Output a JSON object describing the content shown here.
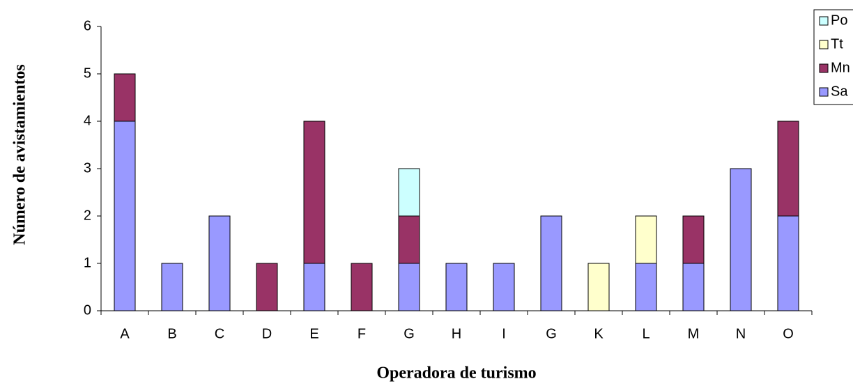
{
  "chart_data": {
    "type": "stacked_bar",
    "y_label": "Número de avistamientos",
    "x_label": "Operadora de turismo",
    "categories": [
      "A",
      "B",
      "C",
      "D",
      "E",
      "F",
      "G",
      "H",
      "I",
      "G",
      "K",
      "L",
      "M",
      "N",
      "O"
    ],
    "series": [
      {
        "name": "Sa",
        "color": "#9999ff",
        "values": [
          4,
          1,
          2,
          0,
          1,
          0,
          1,
          1,
          1,
          2,
          0,
          1,
          1,
          3,
          2
        ]
      },
      {
        "name": "Mn",
        "color": "#993366",
        "values": [
          1,
          0,
          0,
          1,
          3,
          1,
          1,
          0,
          0,
          0,
          0,
          0,
          1,
          0,
          2
        ]
      },
      {
        "name": "Tt",
        "color": "#ffffcc",
        "values": [
          0,
          0,
          0,
          0,
          0,
          0,
          0,
          0,
          0,
          0,
          1,
          1,
          0,
          0,
          0
        ]
      },
      {
        "name": "Po",
        "color": "#ccffff",
        "values": [
          0,
          0,
          0,
          0,
          0,
          0,
          1,
          0,
          0,
          0,
          0,
          0,
          0,
          0,
          0
        ]
      }
    ],
    "ylim": [
      0,
      6
    ],
    "yticks": [
      0,
      1,
      2,
      3,
      4,
      5,
      6
    ],
    "legend": "right"
  }
}
